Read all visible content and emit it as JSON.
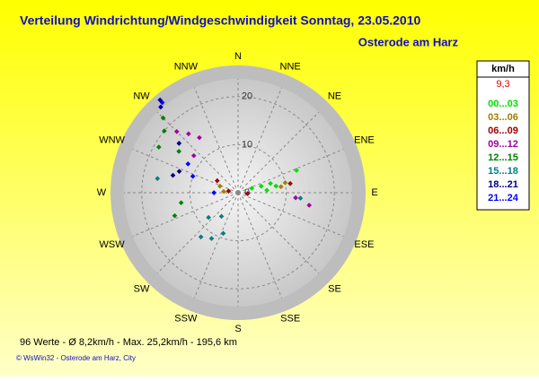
{
  "chart_data": {
    "type": "polar-scatter",
    "title": "Verteilung Windrichtung/Windgeschwindigkeit  Sonntag, 23.05.2010",
    "subtitle": "Osterode am Harz",
    "directions": [
      "N",
      "NNE",
      "NE",
      "ENE",
      "E",
      "ESE",
      "SE",
      "SSE",
      "S",
      "SSW",
      "SW",
      "WSW",
      "W",
      "WNW",
      "NW",
      "NNW"
    ],
    "rlim": [
      0,
      25
    ],
    "rticks": [
      0,
      10,
      20
    ],
    "legend_title": "km/h",
    "legend_value": "9,3",
    "series": [
      {
        "name": "00...03",
        "color": "#00e000",
        "direction": [
          72,
          74,
          74,
          69,
          80,
          85
        ],
        "speed": [
          3,
          5,
          7,
          13,
          8,
          6
        ]
      },
      {
        "name": "03...06",
        "color": "#a08000",
        "direction": [
          78,
          82,
          275,
          290
        ],
        "speed": [
          10,
          9,
          3,
          4
        ]
      },
      {
        "name": "06...09",
        "color": "#a00000",
        "direction": [
          80,
          95,
          280,
          300
        ],
        "speed": [
          11,
          2,
          2,
          5
        ]
      },
      {
        "name": "09...12",
        "color": "#a000a0",
        "direction": [
          100,
          95,
          315,
          320,
          325,
          310
        ],
        "speed": [
          15,
          12,
          18,
          16,
          14,
          12
        ]
      },
      {
        "name": "12...15",
        "color": "#008000",
        "direction": [
          300,
          310,
          315,
          250,
          260,
          305
        ],
        "speed": [
          19,
          20,
          22,
          14,
          12,
          15
        ]
      },
      {
        "name": "15...18",
        "color": "#008080",
        "direction": [
          210,
          220,
          200,
          230,
          215,
          280,
          95
        ],
        "speed": [
          11,
          12,
          9,
          8,
          6,
          17,
          13
        ]
      },
      {
        "name": "18...21",
        "color": "#000080",
        "direction": [
          320,
          318,
          310,
          290,
          285
        ],
        "speed": [
          25.2,
          24,
          16,
          13,
          14
        ]
      },
      {
        "name": "21...24",
        "color": "#0000ff",
        "direction": [
          320,
          300,
          270,
          290
        ],
        "speed": [
          24.5,
          12,
          5,
          10
        ]
      }
    ],
    "stats": "96 Werte   -   Ø 8,2km/h  -  Max. 25,2km/h   -   195,6 km",
    "footer": "© WsWin32  -  Osterode am Harz, City"
  }
}
